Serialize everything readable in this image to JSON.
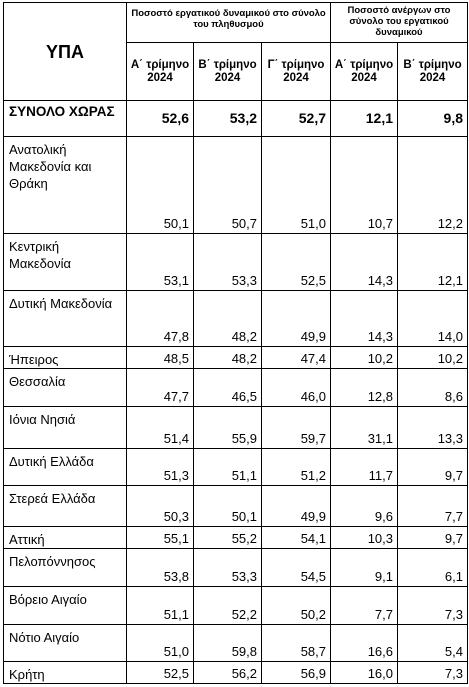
{
  "header": {
    "first_col": "ΥΠΑ",
    "group_participation": "Ποσοστό εργατικού δυναμικού στο σύνολο του πληθυσμού",
    "group_unemployment": "Ποσοστό ανέργων στο σύνολο του εργατικού δυναμικού",
    "quarters": [
      "Α΄ τρίμηνο 2024",
      "Β΄ τρίμηνο 2024",
      "Γ΄ τρίμηνο 2024",
      "Α΄ τρίμηνο 2024",
      "Β΄ τρίμηνο 2024"
    ]
  },
  "rows": [
    {
      "name": "ΣΥΝΟΛΟ ΧΩΡΑΣ",
      "values": [
        "52,6",
        "53,2",
        "52,7",
        "12,1",
        "9,8"
      ]
    },
    {
      "name": "Ανατολική Μακεδονία και Θράκη",
      "values": [
        "50,1",
        "50,7",
        "51,0",
        "10,7",
        "12,2"
      ]
    },
    {
      "name": "Κεντρική Μακεδονία",
      "values": [
        "53,1",
        "53,3",
        "52,5",
        "14,3",
        "12,1"
      ]
    },
    {
      "name": "Δυτική Μακεδονία",
      "values": [
        "47,8",
        "48,2",
        "49,9",
        "14,3",
        "14,0"
      ]
    },
    {
      "name": "Ήπειρος",
      "values": [
        "48,5",
        "48,2",
        "47,4",
        "10,2",
        "10,2"
      ]
    },
    {
      "name": "Θεσσαλία",
      "values": [
        "47,7",
        "46,5",
        "46,0",
        "12,8",
        "8,6"
      ]
    },
    {
      "name": "Ιόνια Νησιά",
      "values": [
        "51,4",
        "55,9",
        "59,7",
        "31,1",
        "13,3"
      ]
    },
    {
      "name": "Δυτική Ελλάδα",
      "values": [
        "51,3",
        "51,1",
        "51,2",
        "11,7",
        "9,7"
      ]
    },
    {
      "name": "Στερεά Ελλάδα",
      "values": [
        "50,3",
        "50,1",
        "49,9",
        "9,6",
        "7,7"
      ]
    },
    {
      "name": "Αττική",
      "values": [
        "55,1",
        "55,2",
        "54,1",
        "10,3",
        "9,7"
      ]
    },
    {
      "name": "Πελοπόννησος",
      "values": [
        "53,8",
        "53,3",
        "54,5",
        "9,1",
        "6,1"
      ]
    },
    {
      "name": "Βόρειο Αιγαίο",
      "values": [
        "51,1",
        "52,2",
        "50,2",
        "7,7",
        "7,3"
      ]
    },
    {
      "name": "Νότιο Αιγαίο",
      "values": [
        "51,0",
        "59,8",
        "58,7",
        "16,6",
        "5,4"
      ]
    },
    {
      "name": "Κρήτη",
      "values": [
        "52,5",
        "56,2",
        "56,9",
        "16,0",
        "7,3"
      ]
    }
  ]
}
